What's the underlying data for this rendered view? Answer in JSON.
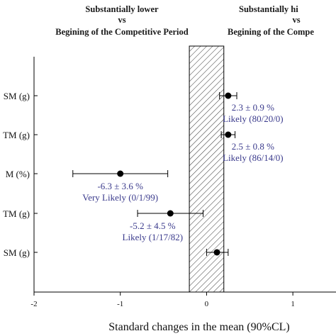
{
  "chart_data": {
    "type": "scatter",
    "header_left": {
      "line1": "Substantially lower",
      "line2": "vs",
      "line3": "Begining of the Competitive Period"
    },
    "header_right": {
      "line1": "Substantially hi",
      "line2": "vs",
      "line3": "Begining of the Compe"
    },
    "xlabel": "Standard changes in the mean (90%CL)",
    "xlim": [
      -2,
      1.5
    ],
    "xticks": [
      -2,
      -1,
      0,
      1
    ],
    "trivial_region": [
      -0.2,
      0.2
    ],
    "rows": [
      {
        "label": "SM (g)",
        "value": 0.25,
        "ci": [
          0.15,
          0.35
        ],
        "annotation_line1": "2.3 ± 0.9 %",
        "annotation_line2": "Likely (80/20/0)"
      },
      {
        "label": "TM (g)",
        "value": 0.25,
        "ci": [
          0.17,
          0.33
        ],
        "annotation_line1": "2.5 ± 0.8 %",
        "annotation_line2": "Likely (86/14/0)"
      },
      {
        "label": "M (%)",
        "value": -1.0,
        "ci": [
          -1.55,
          -0.45
        ],
        "annotation_line1": "-6.3 ± 3.6 %",
        "annotation_line2": "Very Likely (0/1/99)"
      },
      {
        "label": "TM (g)",
        "value": -0.42,
        "ci": [
          -0.8,
          -0.04
        ],
        "annotation_line1": "-5.2 ± 4.5 %",
        "annotation_line2": "Likely (1/17/82)"
      },
      {
        "label": "SM (g)",
        "value": 0.12,
        "ci": [
          0.0,
          0.25
        ],
        "annotation_line1": "",
        "annotation_line2": ""
      }
    ],
    "colors": {
      "point": "#000000",
      "annotation": "#3a3a8c",
      "axis": "#000000"
    }
  }
}
